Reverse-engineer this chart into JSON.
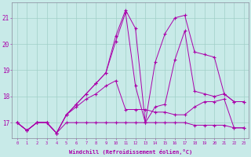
{
  "xlabel": "Windchill (Refroidissement éolien,°C)",
  "ylabel": "",
  "background_color": "#c8eae8",
  "grid_color": "#a0cfc8",
  "line_color": "#aa00aa",
  "spine_color": "#888899",
  "xlim": [
    -0.5,
    23.5
  ],
  "ylim": [
    16.4,
    21.6
  ],
  "yticks": [
    17,
    18,
    19,
    20,
    21
  ],
  "xticks": [
    0,
    1,
    2,
    3,
    4,
    5,
    6,
    7,
    8,
    9,
    10,
    11,
    12,
    13,
    14,
    15,
    16,
    17,
    18,
    19,
    20,
    21,
    22,
    23
  ],
  "series": [
    [
      17.0,
      16.7,
      17.0,
      17.0,
      16.6,
      17.0,
      17.0,
      17.0,
      17.0,
      17.0,
      17.0,
      17.0,
      17.0,
      17.0,
      17.0,
      17.0,
      17.0,
      17.0,
      16.9,
      16.9,
      16.9,
      16.9,
      16.8,
      16.8
    ],
    [
      17.0,
      16.7,
      17.0,
      17.0,
      16.6,
      17.3,
      17.6,
      17.9,
      18.1,
      18.4,
      18.6,
      17.5,
      17.5,
      17.5,
      17.4,
      17.4,
      17.3,
      17.3,
      17.6,
      17.8,
      17.8,
      17.9,
      16.8,
      16.8
    ],
    [
      17.0,
      16.7,
      17.0,
      17.0,
      16.6,
      17.3,
      17.7,
      18.1,
      18.5,
      18.9,
      20.1,
      21.2,
      18.4,
      17.0,
      17.6,
      17.7,
      19.4,
      20.5,
      18.2,
      18.1,
      18.0,
      18.1,
      17.8,
      17.8
    ],
    [
      17.0,
      16.7,
      17.0,
      17.0,
      16.6,
      17.3,
      17.7,
      18.1,
      18.5,
      18.9,
      20.3,
      21.3,
      20.6,
      17.0,
      19.3,
      20.4,
      21.0,
      21.1,
      19.7,
      19.6,
      19.5,
      18.1,
      17.8,
      17.8
    ]
  ]
}
